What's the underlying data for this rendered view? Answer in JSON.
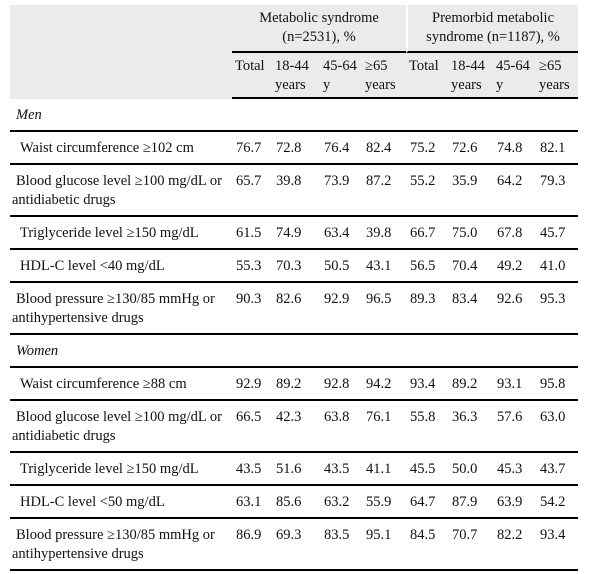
{
  "table": {
    "group_headers": [
      "Metabolic syndrome (n=2531), %",
      "Premorbid metabolic syndrome (n=1187), %"
    ],
    "columns": [
      "Total",
      "18-44 years",
      "45-64 y",
      "≥65 years",
      "Total",
      "18-44 years",
      "45-64 y",
      "≥65 years"
    ],
    "sections": [
      {
        "title": "Men",
        "rows": [
          {
            "label": "Waist circumference ≥102 cm",
            "values": [
              "76.7",
              "72.8",
              "76.4",
              "82.4",
              "75.2",
              "72.6",
              "74.8",
              "82.1"
            ]
          },
          {
            "label": "Blood glucose level ≥100 mg/dL or antidiabetic drugs",
            "values": [
              "65.7",
              "39.8",
              "73.9",
              "87.2",
              "55.2",
              "35.9",
              "64.2",
              "79.3"
            ]
          },
          {
            "label": "Triglyceride level ≥150 mg/dL",
            "values": [
              "61.5",
              "74.9",
              "63.4",
              "39.8",
              "66.7",
              "75.0",
              "67.8",
              "45.7"
            ]
          },
          {
            "label": "HDL-C level <40 mg/dL",
            "values": [
              "55.3",
              "70.3",
              "50.5",
              "43.1",
              "56.5",
              "70.4",
              "49.2",
              "41.0"
            ]
          },
          {
            "label": "Blood pressure ≥130/85 mmHg or antihypertensive drugs",
            "values": [
              "90.3",
              "82.6",
              "92.9",
              "96.5",
              "89.3",
              "83.4",
              "92.6",
              "95.3"
            ]
          }
        ]
      },
      {
        "title": "Women",
        "rows": [
          {
            "label": "Waist circumference ≥88 cm",
            "values": [
              "92.9",
              "89.2",
              "92.8",
              "94.2",
              "93.4",
              "89.2",
              "93.1",
              "95.8"
            ]
          },
          {
            "label": "Blood glucose level ≥100 mg/dL or antidiabetic drugs",
            "values": [
              "66.5",
              "42.3",
              "63.8",
              "76.1",
              "55.8",
              "36.3",
              "57.6",
              "63.0"
            ]
          },
          {
            "label": "Triglyceride level ≥150 mg/dL",
            "values": [
              "43.5",
              "51.6",
              "43.5",
              "41.1",
              "45.5",
              "50.0",
              "45.3",
              "43.7"
            ]
          },
          {
            "label": "HDL-C level <50 mg/dL",
            "values": [
              "63.1",
              "85.6",
              "63.2",
              "55.9",
              "64.7",
              "87.9",
              "63.9",
              "54.2"
            ]
          },
          {
            "label": "Blood pressure ≥130/85 mmHg or antihypertensive drugs",
            "values": [
              "86.9",
              "69.3",
              "83.5",
              "95.1",
              "84.5",
              "70.7",
              "82.2",
              "93.4"
            ]
          }
        ]
      }
    ]
  }
}
